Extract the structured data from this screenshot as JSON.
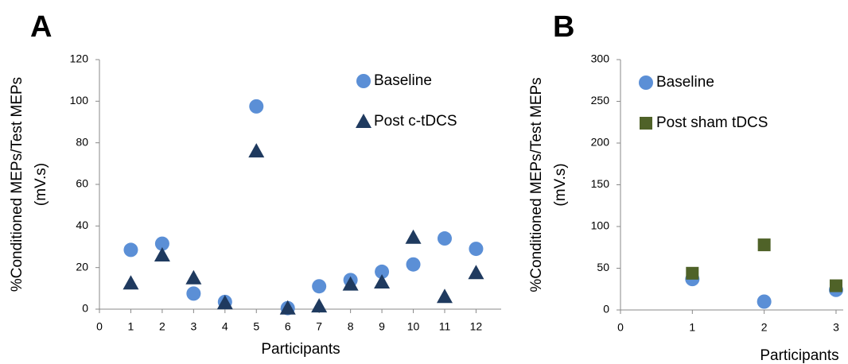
{
  "chart_data": [
    {
      "type": "scatter",
      "label": "A",
      "xlabel": "Participants",
      "ylabel": [
        "%Conditioned MEPs/Test MEPs",
        "(mV.s)"
      ],
      "xlim": [
        0,
        12.8
      ],
      "xticks": [
        0,
        1,
        2,
        3,
        4,
        5,
        6,
        7,
        8,
        9,
        10,
        11,
        12
      ],
      "ylim": [
        0,
        120
      ],
      "yticks": [
        0,
        20,
        40,
        60,
        80,
        100,
        120
      ],
      "grid": false,
      "legend": "top-right",
      "series": [
        {
          "name": "Baseline",
          "color": "#5b8fd6",
          "marker": "circle",
          "x": [
            1,
            2,
            3,
            4,
            5,
            6,
            7,
            8,
            9,
            10,
            11,
            12
          ],
          "values": [
            28.5,
            31.5,
            7.5,
            3.5,
            97.5,
            0.5,
            11,
            14,
            18,
            21.5,
            34,
            29
          ]
        },
        {
          "name": "Post c-tDCS",
          "color": "#1f3a5f",
          "marker": "triangle",
          "x": [
            1,
            2,
            3,
            4,
            5,
            6,
            7,
            8,
            9,
            10,
            11,
            12
          ],
          "values": [
            12.5,
            26,
            15,
            3,
            76,
            0.5,
            1.5,
            12,
            13,
            34.5,
            6,
            17.5
          ]
        }
      ]
    },
    {
      "type": "scatter",
      "label": "B",
      "xlabel": "Participants",
      "ylabel": [
        "%Conditioned MEPs/Test MEPs",
        "(mV.s)"
      ],
      "xlim": [
        0,
        3.1
      ],
      "xticks": [
        0,
        1,
        2,
        3
      ],
      "ylim": [
        0,
        300
      ],
      "yticks": [
        0,
        50,
        100,
        150,
        200,
        250,
        300
      ],
      "grid": false,
      "legend": "top-left",
      "series": [
        {
          "name": "Baseline",
          "color": "#5b8fd6",
          "marker": "circle",
          "x": [
            1,
            2,
            3
          ],
          "values": [
            37,
            10,
            24
          ]
        },
        {
          "name": "Post sham tDCS",
          "color": "#4f6228",
          "marker": "square",
          "x": [
            1,
            2,
            3
          ],
          "values": [
            44,
            78,
            29
          ]
        }
      ]
    }
  ]
}
